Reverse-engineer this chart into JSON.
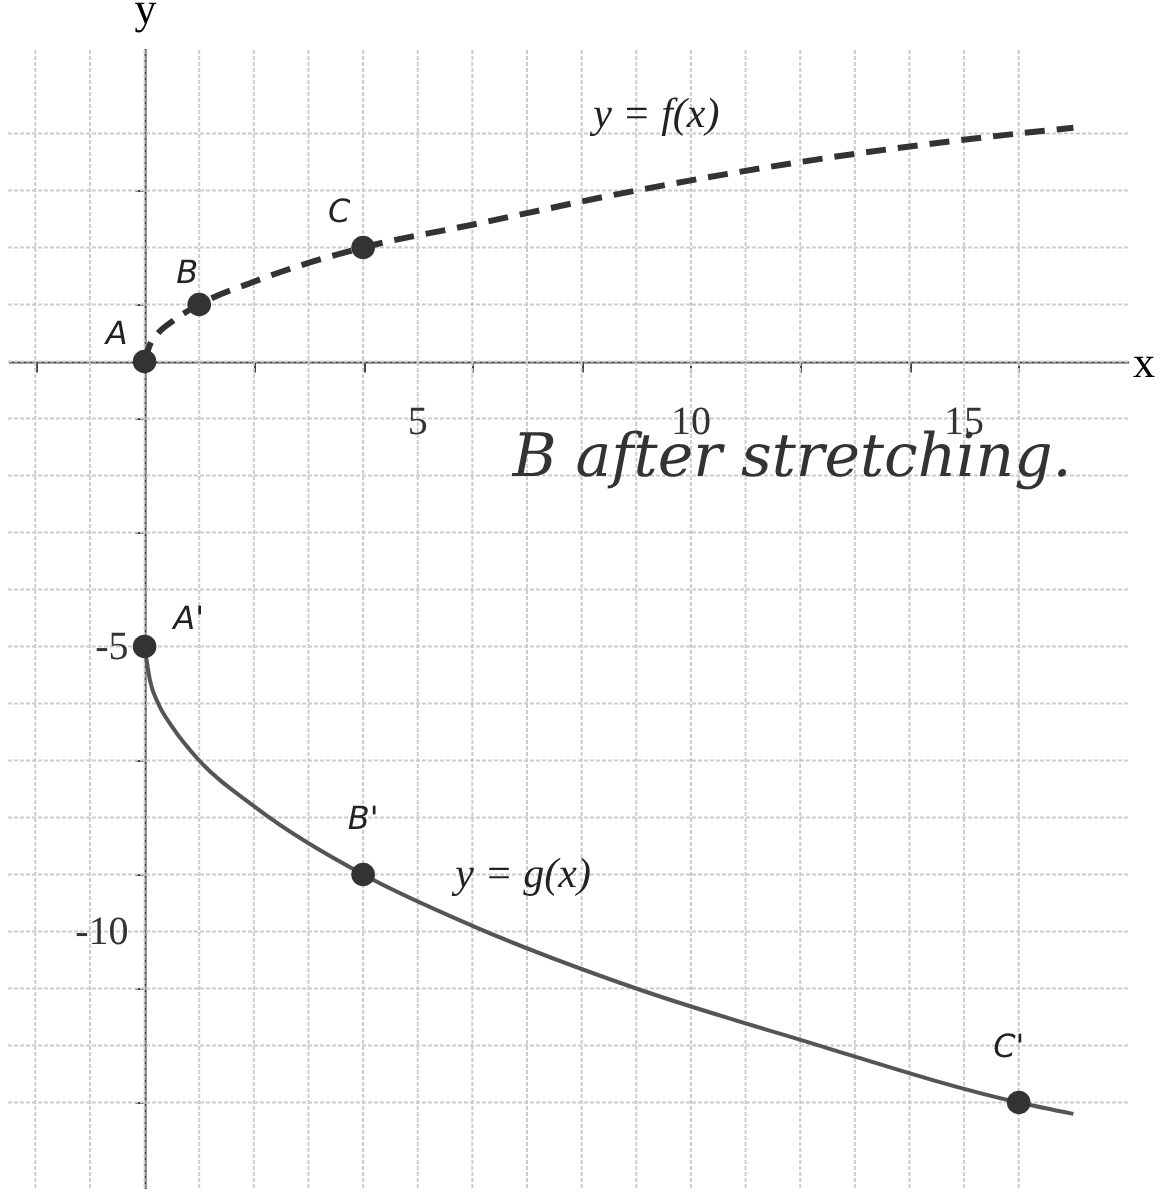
{
  "chart_data": {
    "type": "line",
    "xlabel": "x",
    "ylabel": "y",
    "xlim": [
      -2.5,
      18
    ],
    "ylim": [
      -14.5,
      5.5
    ],
    "xticks": [
      {
        "value": -2,
        "label": null
      },
      {
        "value": -1,
        "label": null
      },
      {
        "value": 0,
        "label": null
      },
      {
        "value": 1,
        "label": null
      },
      {
        "value": 2,
        "label": null
      },
      {
        "value": 3,
        "label": null
      },
      {
        "value": 4,
        "label": null
      },
      5,
      {
        "value": 6,
        "label": null
      },
      {
        "value": 7,
        "label": null
      },
      {
        "value": 8,
        "label": null
      },
      {
        "value": 9,
        "label": null
      },
      10,
      {
        "value": 11,
        "label": null
      },
      {
        "value": 12,
        "label": null
      },
      {
        "value": 13,
        "label": null
      },
      {
        "value": 14,
        "label": null
      },
      15,
      {
        "value": 16,
        "label": null
      }
    ],
    "yticks": [
      {
        "value": -13,
        "label": null
      },
      {
        "value": -12,
        "label": null
      },
      {
        "value": -11,
        "label": null
      },
      -10,
      {
        "value": -9,
        "label": null
      },
      {
        "value": -8,
        "label": null
      },
      {
        "value": -7,
        "label": null
      },
      {
        "value": -6,
        "label": null
      },
      -5,
      {
        "value": -4,
        "label": null
      },
      {
        "value": -3,
        "label": null
      },
      {
        "value": -2,
        "label": null
      },
      {
        "value": -1,
        "label": null
      },
      {
        "value": 0,
        "label": null
      },
      {
        "value": 1,
        "label": null
      },
      {
        "value": 2,
        "label": null
      },
      {
        "value": 3,
        "label": null
      },
      {
        "value": 4,
        "label": null
      }
    ],
    "grid": true,
    "series": [
      {
        "type": "line",
        "name": "y = f(x)",
        "color": "#333333",
        "line_style": "dashed",
        "marker": "none",
        "x": [
          0,
          0.1,
          0.25,
          0.5,
          1,
          2,
          4,
          6,
          9,
          12,
          16,
          17
        ],
        "values": [
          0,
          0.3,
          0.5,
          0.7,
          1,
          1.4,
          2,
          2.4,
          3,
          3.5,
          4,
          4.1
        ]
      },
      {
        "type": "line",
        "name": "y = g(x)",
        "color": "#555555",
        "line_style": "solid",
        "marker": "none",
        "x": [
          0,
          0.1,
          0.25,
          0.5,
          1,
          2,
          4,
          6,
          9,
          12,
          16,
          17
        ],
        "values": [
          -5,
          -5.6,
          -6,
          -6.4,
          -7,
          -7.8,
          -9,
          -9.9,
          -11,
          -11.9,
          -13,
          -13.2
        ]
      },
      {
        "type": "scatter",
        "color": "#333333",
        "marker": "circle",
        "x": [
          0,
          1,
          4,
          0,
          4,
          16
        ],
        "values": [
          0,
          1,
          2,
          -5,
          -9,
          -13
        ]
      }
    ],
    "annotations": [
      {
        "text": "A",
        "x": 0,
        "y": 0
      },
      {
        "text": "B",
        "x": 1,
        "y": 1
      },
      {
        "text": "C",
        "x": 4,
        "y": 2
      },
      {
        "text": "A'",
        "x": 0,
        "y": -5
      },
      {
        "text": "B'",
        "x": 4,
        "y": -9
      },
      {
        "text": "C'",
        "x": 16,
        "y": -13
      },
      "B after stretching."
    ]
  }
}
